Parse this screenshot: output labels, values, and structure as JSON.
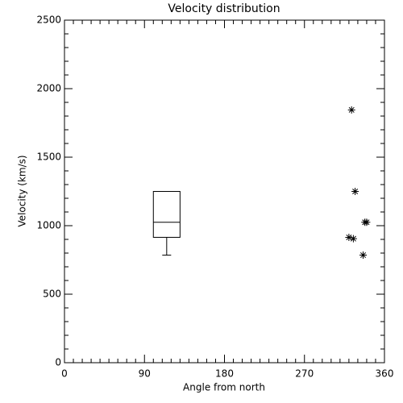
{
  "chart_data": {
    "type": "box",
    "title": "Velocity distribution",
    "xlabel": "Angle from north",
    "ylabel": "Velocity (km/s)",
    "xlim": [
      0,
      360
    ],
    "ylim": [
      0,
      2500
    ],
    "xticks": [
      0,
      90,
      180,
      270,
      360
    ],
    "yticks": [
      0,
      500,
      1000,
      1500,
      2000,
      2500
    ],
    "xminor": 9,
    "yminor": 5,
    "color": "#000000",
    "box": {
      "x": 115,
      "width": 30,
      "min": 785,
      "q1": 915,
      "median": 1025,
      "q3": 1250,
      "max": 1250
    },
    "series": [
      {
        "type": "scatter",
        "marker": "asterisk",
        "x": [
          323,
          327,
          320,
          325,
          338,
          340,
          336
        ],
        "values": [
          1845,
          1250,
          915,
          905,
          1025,
          1025,
          785
        ]
      }
    ]
  }
}
